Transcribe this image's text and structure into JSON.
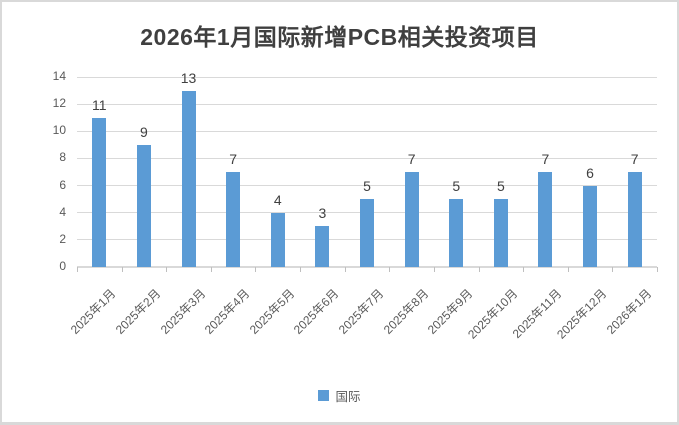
{
  "title": "2026年1月国际新增PCB相关投资项目",
  "legend": {
    "label": "国际",
    "color": "#5B9BD5"
  },
  "colors": {
    "bar": "#5B9BD5",
    "gridline": "#D9D9D9",
    "axis_line": "#D9D9D9",
    "tick": "#BFBFBF",
    "axis_text": "#595959",
    "value_label_text": "#404040",
    "title_text": "#3F3F3F",
    "frame_border": "#D9D9D9"
  },
  "chart_data": {
    "type": "bar",
    "title": "2026年1月国际新增PCB相关投资项目",
    "categories": [
      "2025年1月",
      "2025年2月",
      "2025年3月",
      "2025年4月",
      "2025年5月",
      "2025年6月",
      "2025年7月",
      "2025年8月",
      "2025年9月",
      "2025年10月",
      "2025年11月",
      "2025年12月",
      "2026年1月"
    ],
    "series": [
      {
        "name": "国际",
        "values": [
          11,
          9,
          13,
          7,
          4,
          3,
          5,
          7,
          5,
          5,
          7,
          6,
          7
        ]
      }
    ],
    "xlabel": "",
    "ylabel": "",
    "ylim": [
      0,
      14
    ],
    "ytick_step": 2,
    "yticks": [
      0,
      2,
      4,
      6,
      8,
      10,
      12,
      14
    ],
    "grid": true,
    "data_labels": true,
    "legend_position": "bottom"
  }
}
